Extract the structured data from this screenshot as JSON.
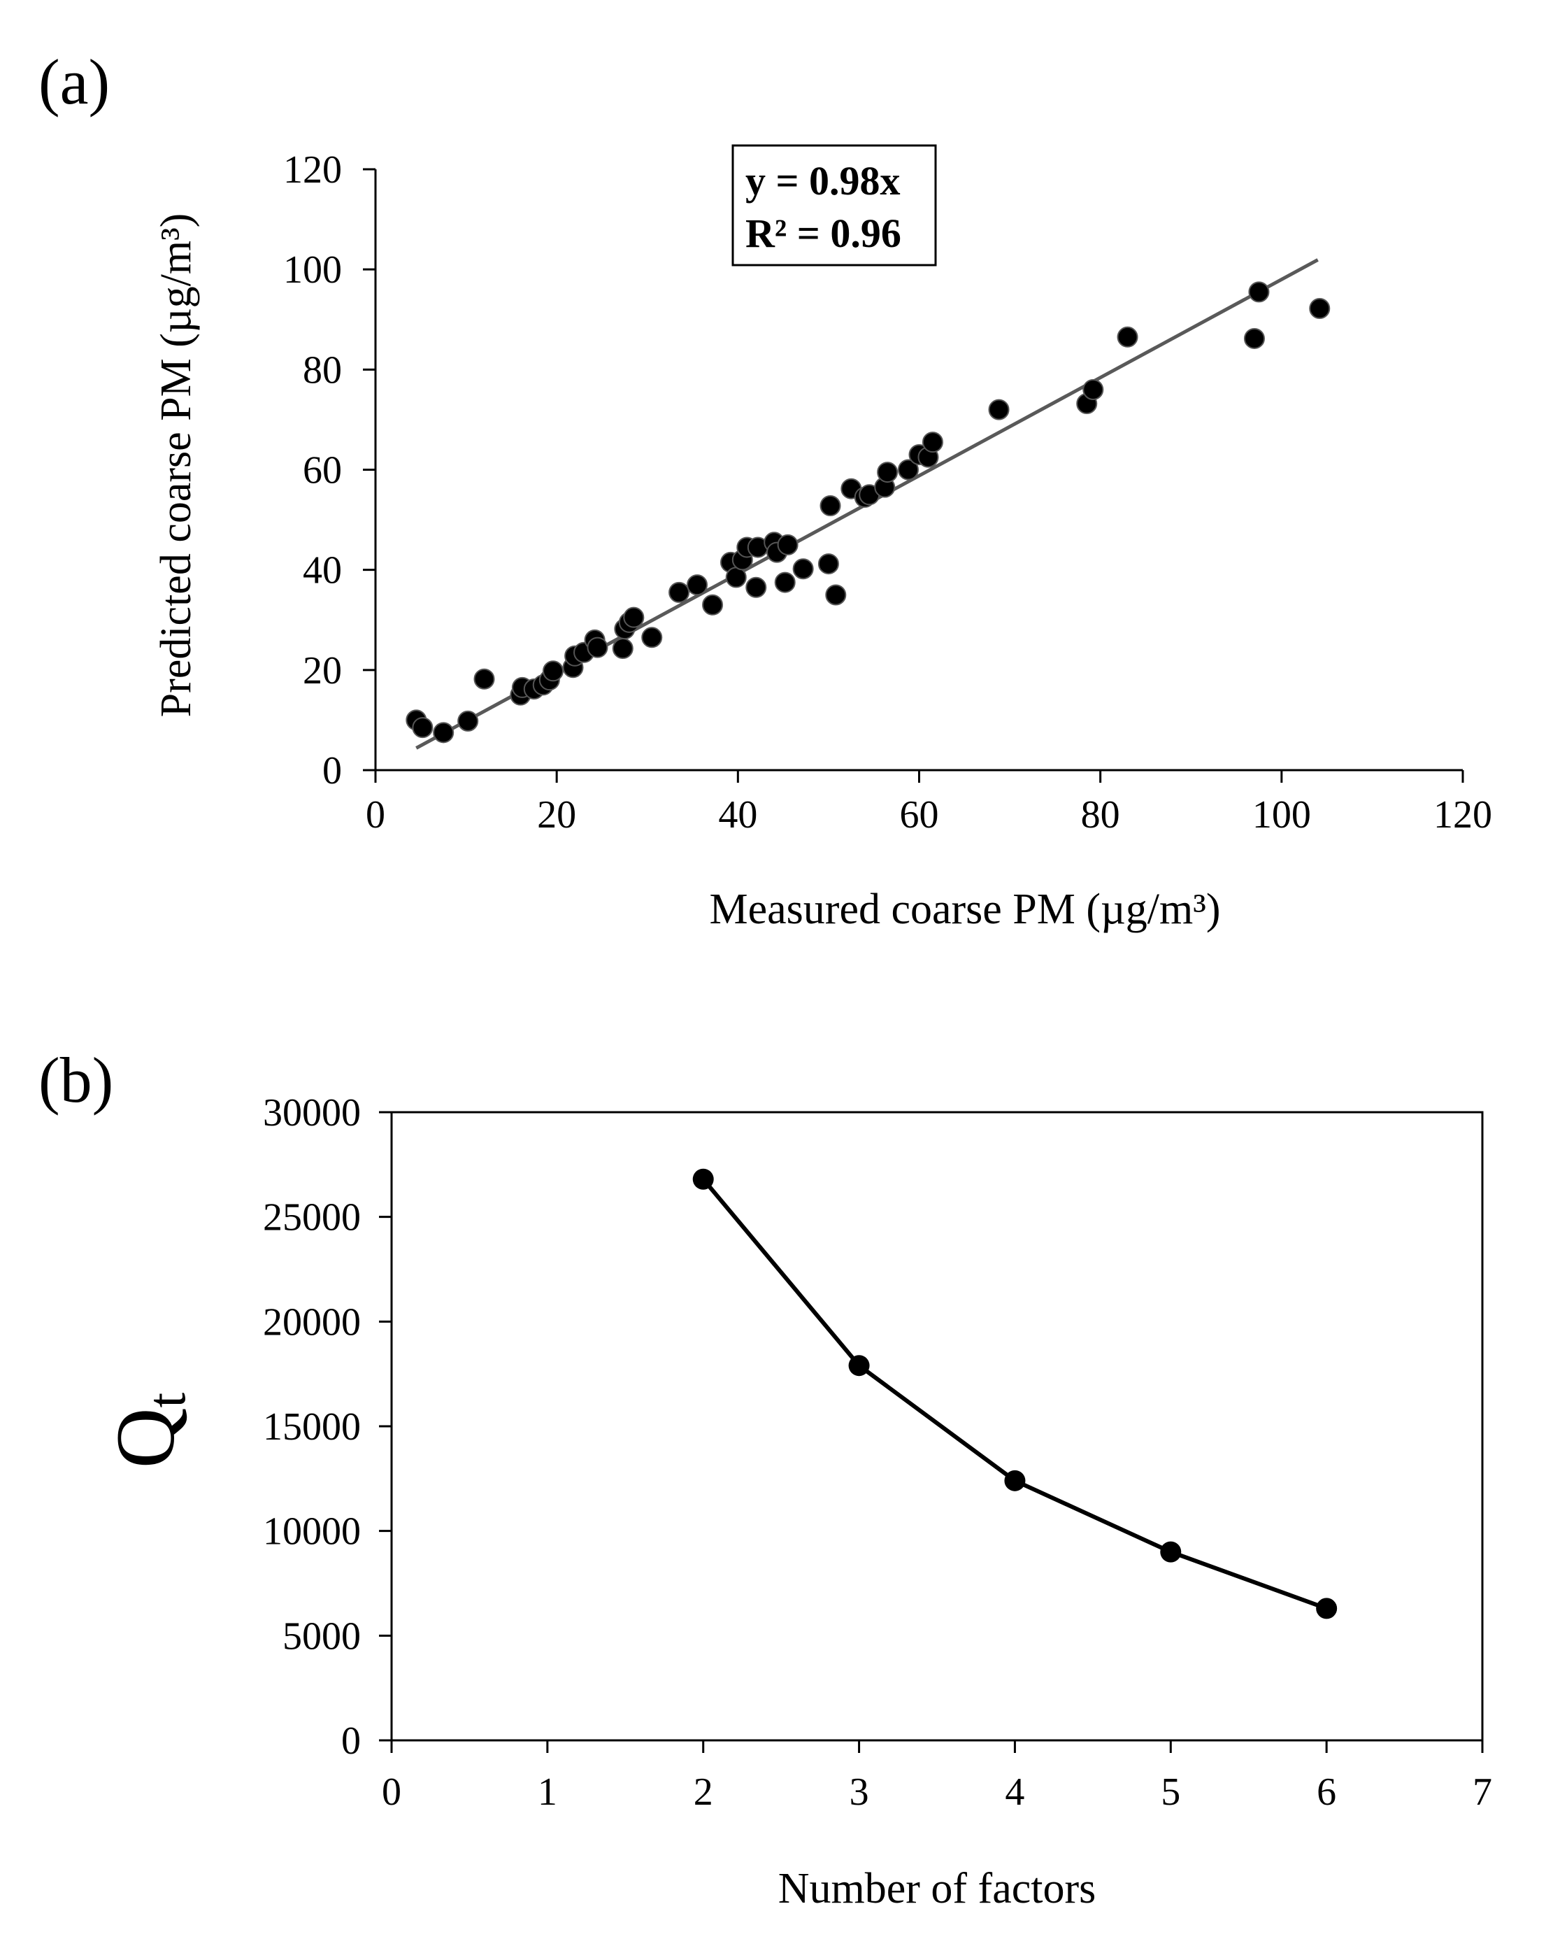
{
  "chart_data": [
    {
      "panel_label": "(a)",
      "type": "scatter",
      "xlabel": "Measured coarse PM (µg/m³)",
      "ylabel": "Predicted coarse PM (µg/m³)",
      "xlim": [
        0,
        120
      ],
      "ylim": [
        0,
        120
      ],
      "xticks": [
        0,
        20,
        40,
        60,
        80,
        100,
        120
      ],
      "yticks": [
        0,
        20,
        40,
        60,
        80,
        100,
        120
      ],
      "grid": false,
      "annotation": {
        "equation": "y = 0.98x",
        "r2": "R² = 0.96"
      },
      "trendline": {
        "slope": 0.98,
        "x_range": [
          4.5,
          104
        ],
        "color": "#595959"
      },
      "marker_color": "#000000",
      "points": [
        [
          4.5,
          10
        ],
        [
          5.2,
          8.5
        ],
        [
          7.5,
          7.5
        ],
        [
          10.2,
          9.8
        ],
        [
          12,
          18.2
        ],
        [
          16,
          15
        ],
        [
          16.2,
          16.5
        ],
        [
          17.5,
          16.2
        ],
        [
          18.5,
          17
        ],
        [
          19.2,
          18
        ],
        [
          19.6,
          19.8
        ],
        [
          21.8,
          20.5
        ],
        [
          22,
          22.8
        ],
        [
          23,
          23.5
        ],
        [
          24.2,
          26
        ],
        [
          24.5,
          24.5
        ],
        [
          27.3,
          24.3
        ],
        [
          27.5,
          28.2
        ],
        [
          28,
          29.5
        ],
        [
          28.5,
          30.5
        ],
        [
          30.5,
          26.5
        ],
        [
          33.5,
          35.5
        ],
        [
          35.5,
          37
        ],
        [
          37.2,
          33
        ],
        [
          39.2,
          41.5
        ],
        [
          39.8,
          38.5
        ],
        [
          40.5,
          42
        ],
        [
          41,
          44.5
        ],
        [
          42,
          36.5
        ],
        [
          42.2,
          44.5
        ],
        [
          44,
          45.5
        ],
        [
          44.3,
          43.5
        ],
        [
          45.2,
          37.5
        ],
        [
          45.5,
          45
        ],
        [
          47.2,
          40.2
        ],
        [
          50,
          41.2
        ],
        [
          50.2,
          52.8
        ],
        [
          50.8,
          35
        ],
        [
          52.5,
          56.2
        ],
        [
          54,
          54.5
        ],
        [
          54.5,
          55
        ],
        [
          56.2,
          56.5
        ],
        [
          56.5,
          59.5
        ],
        [
          58.8,
          60
        ],
        [
          60,
          63
        ],
        [
          61,
          62.5
        ],
        [
          61.5,
          65.5
        ],
        [
          68.8,
          72
        ],
        [
          78.5,
          73.2
        ],
        [
          79.2,
          76
        ],
        [
          83,
          86.5
        ],
        [
          97,
          86.2
        ],
        [
          97.5,
          95.5
        ],
        [
          104.2,
          92.2
        ]
      ]
    },
    {
      "panel_label": "(b)",
      "type": "line",
      "xlabel": "Number of factors",
      "ylabel": "Q",
      "ylabel_subscript": "t",
      "xlim": [
        0,
        7
      ],
      "ylim": [
        0,
        30000
      ],
      "xticks": [
        0,
        1,
        2,
        3,
        4,
        5,
        6,
        7
      ],
      "yticks": [
        0,
        5000,
        10000,
        15000,
        20000,
        25000,
        30000
      ],
      "grid": false,
      "series": [
        {
          "name": "Qt",
          "color": "#000000",
          "x": [
            2,
            3,
            4,
            5,
            6
          ],
          "values": [
            26800,
            17900,
            12400,
            9000,
            6300
          ]
        }
      ]
    }
  ]
}
